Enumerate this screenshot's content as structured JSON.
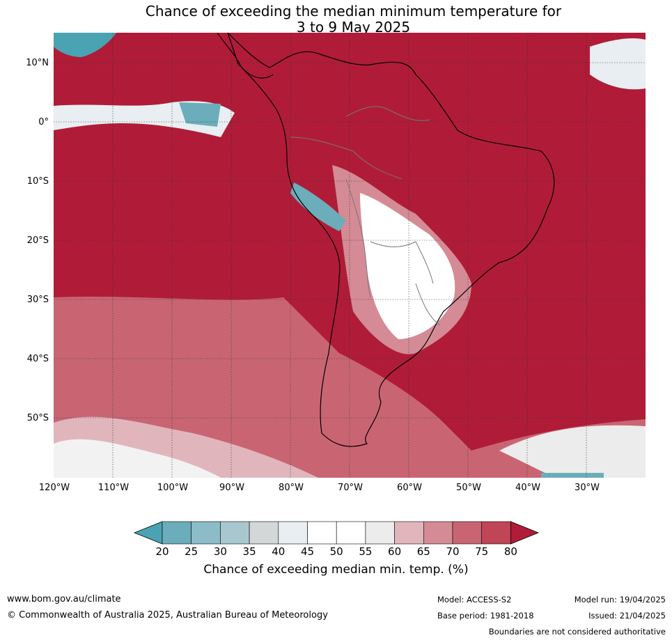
{
  "title": {
    "line1": "Chance of exceeding the median minimum temperature for",
    "line2": "3 to 9 May 2025"
  },
  "axes": {
    "lat_labels": [
      "10°N",
      "0°",
      "10°S",
      "20°S",
      "30°S",
      "40°S",
      "50°S"
    ],
    "lon_labels": [
      "120°W",
      "110°W",
      "100°W",
      "90°W",
      "80°W",
      "70°W",
      "60°W",
      "50°W",
      "40°W",
      "30°W"
    ]
  },
  "colorbar": {
    "ticks": [
      "20",
      "25",
      "30",
      "35",
      "40",
      "45",
      "50",
      "55",
      "60",
      "65",
      "70",
      "75",
      "80"
    ],
    "colors": [
      "#4aa3b3",
      "#6badbb",
      "#8bbcc8",
      "#a9c7ce",
      "#d3d7d8",
      "#e8eef1",
      "#ffffff",
      "#ffffff",
      "#ececec",
      "#e0b6bc",
      "#d48b95",
      "#c96573",
      "#bf4557",
      "#b01c38"
    ],
    "label": "Chance of exceeding median min. temp. (%)"
  },
  "footer": {
    "website": "www.bom.gov.au/climate",
    "copyright": "© Commonwealth of Australia 2025, Australian Bureau of Meteorology",
    "model": "Model: ACCESS-S2",
    "base_period": "Base period: 1981-2018",
    "model_run": "Model run: 19/04/2025",
    "issued": "Issued: 21/04/2025",
    "disclaimer": "Boundaries are not considered authoritative"
  }
}
